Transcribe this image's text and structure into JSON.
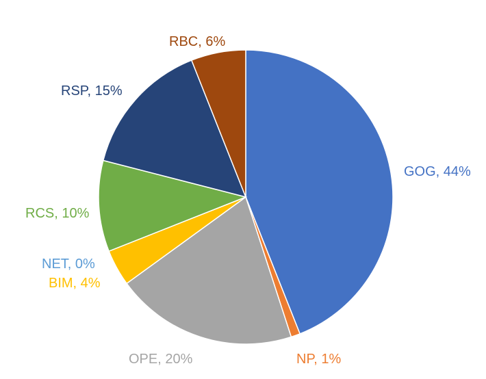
{
  "chart_data": {
    "type": "pie",
    "title": "",
    "legend": "none",
    "slices": [
      {
        "name": "GOG",
        "value": 44,
        "label": "GOG, 44%",
        "color": "#4472C4"
      },
      {
        "name": "NP",
        "value": 1,
        "label": "NP, 1%",
        "color": "#ED7D31"
      },
      {
        "name": "OPE",
        "value": 20,
        "label": "OPE, 20%",
        "color": "#A5A5A5"
      },
      {
        "name": "BIM",
        "value": 4,
        "label": "BIM, 4%",
        "color": "#FFC000"
      },
      {
        "name": "NET",
        "value": 0,
        "label": "NET, 0%",
        "color": "#5B9BD5"
      },
      {
        "name": "RCS",
        "value": 10,
        "label": "RCS, 10%",
        "color": "#70AD47"
      },
      {
        "name": "RSP",
        "value": 15,
        "label": "RSP, 15%",
        "color": "#264478"
      },
      {
        "name": "RBC",
        "value": 6,
        "label": "RBC, 6%",
        "color": "#9E480E"
      }
    ]
  }
}
